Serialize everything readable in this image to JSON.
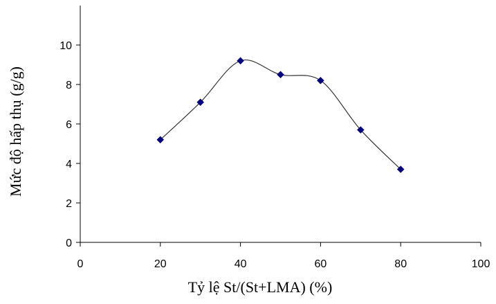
{
  "chart_data": {
    "type": "line",
    "title": "",
    "xlabel": "Tỷ lệ St/(St+LMA) (%)",
    "ylabel": "Mức độ hấp thụ (g/g)",
    "xlim": [
      0,
      100
    ],
    "ylim": [
      0,
      12
    ],
    "xticks": [
      0,
      20,
      40,
      60,
      80,
      100
    ],
    "yticks": [
      0,
      2,
      4,
      6,
      8,
      10
    ],
    "grid": false,
    "smoothed": true,
    "series": [
      {
        "x": [
          20,
          30,
          40,
          50,
          60,
          70,
          80
        ],
        "y": [
          5.2,
          7.1,
          9.2,
          8.5,
          8.2,
          5.7,
          3.7
        ],
        "color": "#000080",
        "line_color": "#333333",
        "marker": "diamond"
      }
    ]
  }
}
